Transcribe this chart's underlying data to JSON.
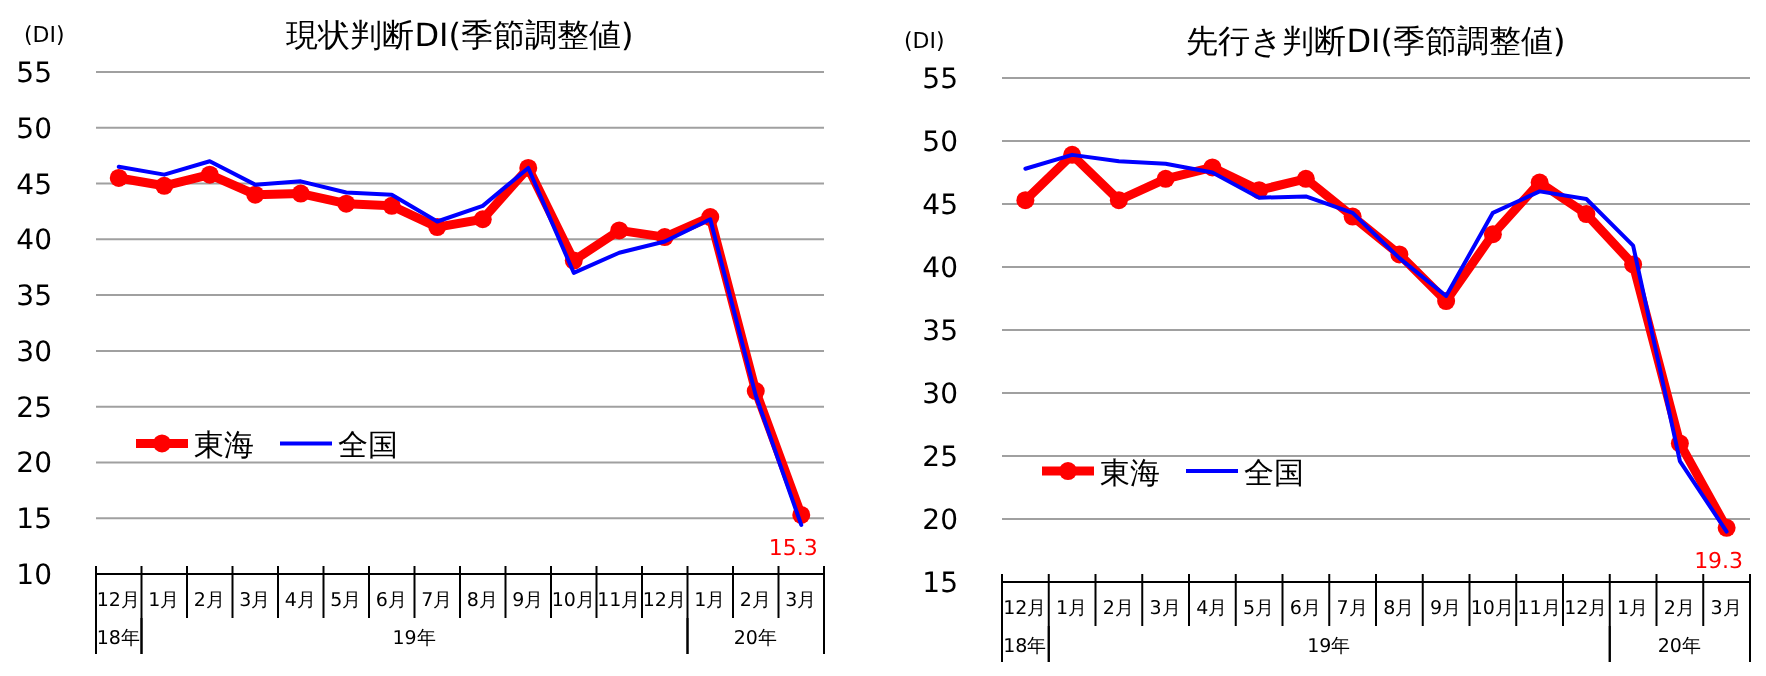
{
  "chart_data": [
    {
      "type": "line",
      "title": "現状判断DI(季節調整値)",
      "ylabel": "(DI)",
      "categories": [
        "12月",
        "1月",
        "2月",
        "3月",
        "4月",
        "5月",
        "6月",
        "7月",
        "8月",
        "9月",
        "10月",
        "11月",
        "12月",
        "1月",
        "2月",
        "3月"
      ],
      "annotations": [
        "18年",
        "19年",
        "20年"
      ],
      "ylim": [
        10,
        55
      ],
      "yticks": [
        10,
        15,
        20,
        25,
        30,
        35,
        40,
        45,
        50,
        55
      ],
      "grid": "y",
      "legend": "left",
      "series": [
        {
          "name": "東海",
          "color": "#ff0000",
          "marker": "circle",
          "values": [
            45.5,
            44.8,
            45.8,
            44.0,
            44.1,
            43.2,
            43.0,
            41.1,
            41.8,
            46.4,
            38.1,
            40.8,
            40.2,
            42.0,
            26.4,
            15.3
          ],
          "value_labels": [
            null,
            null,
            null,
            null,
            null,
            null,
            null,
            null,
            null,
            null,
            null,
            null,
            null,
            null,
            null,
            "15.3"
          ]
        },
        {
          "name": "全国",
          "color": "#0000ff",
          "marker": "none",
          "values": [
            46.5,
            45.8,
            47.0,
            44.9,
            45.2,
            44.2,
            44.0,
            41.6,
            43.0,
            46.4,
            37.0,
            38.8,
            39.8,
            41.8,
            26.0,
            14.4
          ]
        }
      ]
    },
    {
      "type": "line",
      "title": "先行き判断DI(季節調整値)",
      "ylabel": "(DI)",
      "categories": [
        "12月",
        "1月",
        "2月",
        "3月",
        "4月",
        "5月",
        "6月",
        "7月",
        "8月",
        "9月",
        "10月",
        "11月",
        "12月",
        "1月",
        "2月",
        "3月"
      ],
      "annotations": [
        "18年",
        "19年",
        "20年"
      ],
      "ylim": [
        15,
        55
      ],
      "yticks": [
        15,
        20,
        25,
        30,
        35,
        40,
        45,
        50,
        55
      ],
      "grid": "y",
      "legend": "left",
      "series": [
        {
          "name": "東海",
          "color": "#ff0000",
          "marker": "circle",
          "values": [
            45.3,
            48.9,
            45.3,
            47.0,
            47.9,
            46.1,
            47.0,
            44.0,
            41.0,
            37.3,
            42.6,
            46.7,
            44.2,
            40.2,
            26.0,
            19.3
          ],
          "value_labels": [
            null,
            null,
            null,
            null,
            null,
            null,
            null,
            null,
            null,
            null,
            null,
            null,
            null,
            null,
            null,
            "19.3"
          ]
        },
        {
          "name": "全国",
          "color": "#0000ff",
          "marker": "none",
          "values": [
            47.8,
            48.9,
            48.4,
            48.2,
            47.5,
            45.5,
            45.6,
            44.3,
            40.7,
            37.7,
            44.3,
            46.0,
            45.4,
            41.7,
            24.6,
            19.0
          ]
        }
      ]
    }
  ]
}
